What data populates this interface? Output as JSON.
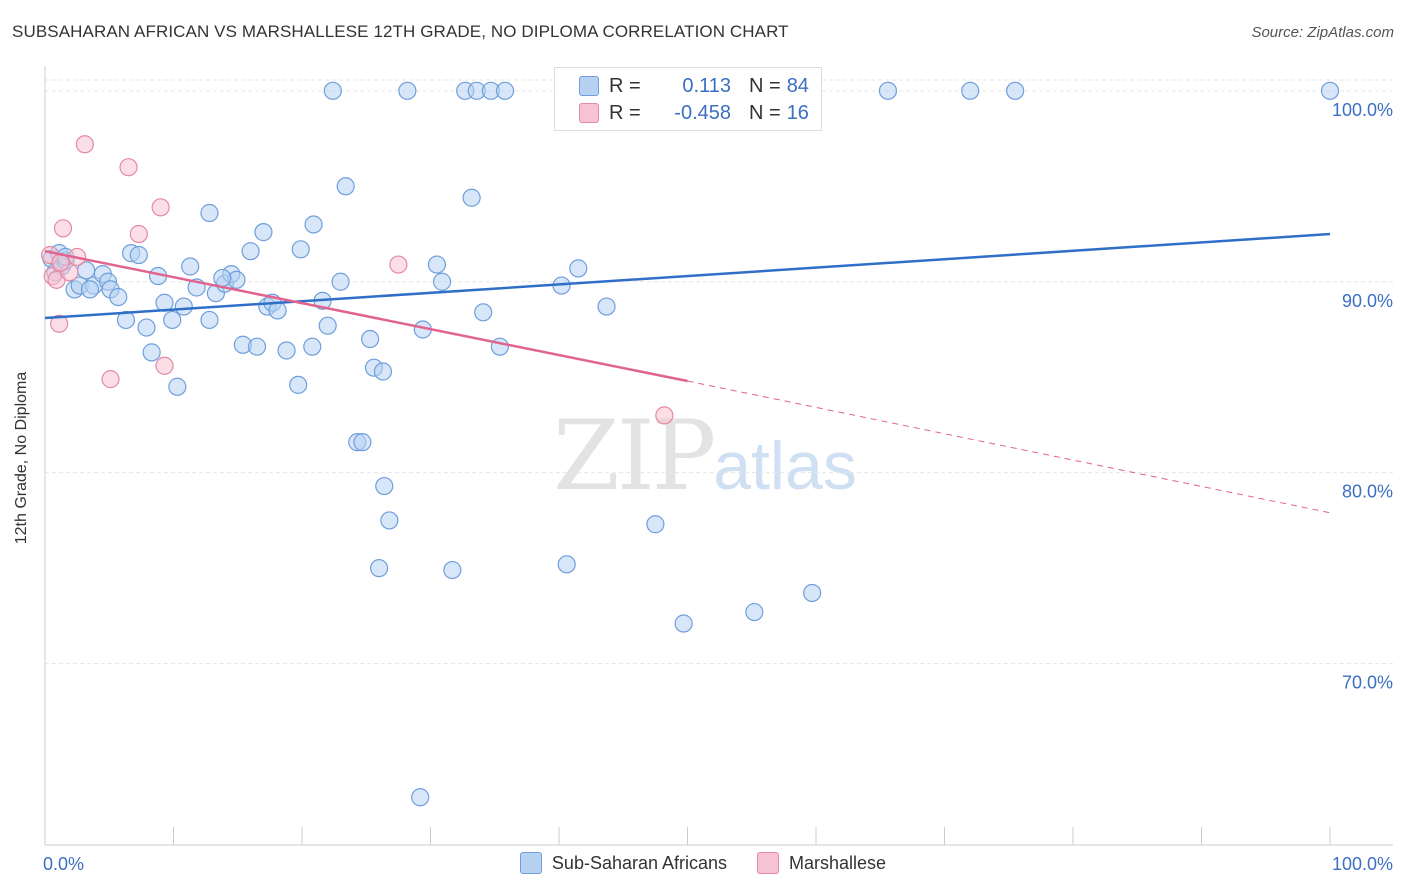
{
  "header": {
    "title": "SUBSAHARAN AFRICAN VS MARSHALLESE 12TH GRADE, NO DIPLOMA CORRELATION CHART",
    "source": "Source: ZipAtlas.com"
  },
  "legend": {
    "rows": [
      {
        "r_label": "R =",
        "r_value": "0.113",
        "n_label": "N =",
        "n_value": "84"
      },
      {
        "r_label": "R =",
        "r_value": "-0.458",
        "n_label": "N =",
        "n_value": "16"
      }
    ],
    "bottom": [
      "Sub-Saharan Africans",
      "Marshallese"
    ]
  },
  "watermark": {
    "zip": "ZIP",
    "atlas": "atlas"
  },
  "colors": {
    "blue_fill": "#b7d1f2",
    "blue_stroke": "#6f9fdb",
    "blue_line": "#2f6fc8",
    "pink_fill": "#f7c3d2",
    "pink_stroke": "#e48aa6",
    "pink_line": "#e0648f",
    "grid": "#e6e6e6",
    "tick_text": "#3b6fc4"
  },
  "chart_data": {
    "type": "scatter",
    "title": "SUBSAHARAN AFRICAN VS MARSHALLESE 12TH GRADE, NO DIPLOMA CORRELATION CHART",
    "xlabel": "",
    "ylabel": "12th Grade, No Diploma",
    "xlim": [
      0,
      100
    ],
    "ylim": [
      60.5,
      101.3
    ],
    "x_tick_labels": [
      "0.0%",
      "100.0%"
    ],
    "y_ticks": [
      70,
      80,
      90,
      100
    ],
    "y_tick_labels": [
      "70.0%",
      "80.0%",
      "90.0%",
      "100.0%"
    ],
    "grid": true,
    "series": [
      {
        "name": "Sub-Saharan Africans",
        "points": [
          [
            0.5,
            91.2
          ],
          [
            0.8,
            90.5
          ],
          [
            1.1,
            91.5
          ],
          [
            1.3,
            90.8
          ],
          [
            1.6,
            91.1
          ],
          [
            2.3,
            89.6
          ],
          [
            2.7,
            89.8
          ],
          [
            3.2,
            90.6
          ],
          [
            3.8,
            89.8
          ],
          [
            4.5,
            90.4
          ],
          [
            4.9,
            90.0
          ],
          [
            5.1,
            89.6
          ],
          [
            5.7,
            89.2
          ],
          [
            6.3,
            88.0
          ],
          [
            6.7,
            91.5
          ],
          [
            7.3,
            91.4
          ],
          [
            7.9,
            87.6
          ],
          [
            8.3,
            86.3
          ],
          [
            8.8,
            90.3
          ],
          [
            9.3,
            88.9
          ],
          [
            9.9,
            88.0
          ],
          [
            10.3,
            84.5
          ],
          [
            10.8,
            88.7
          ],
          [
            11.3,
            90.8
          ],
          [
            11.8,
            89.7
          ],
          [
            12.8,
            88.0
          ],
          [
            12.8,
            93.6
          ],
          [
            13.3,
            89.4
          ],
          [
            14.0,
            89.9
          ],
          [
            14.5,
            90.4
          ],
          [
            14.9,
            90.1
          ],
          [
            15.4,
            86.7
          ],
          [
            16.0,
            91.6
          ],
          [
            16.5,
            86.6
          ],
          [
            17.0,
            92.6
          ],
          [
            17.3,
            88.7
          ],
          [
            17.7,
            88.9
          ],
          [
            18.1,
            88.5
          ],
          [
            18.8,
            86.4
          ],
          [
            19.7,
            84.6
          ],
          [
            19.9,
            91.7
          ],
          [
            20.8,
            86.6
          ],
          [
            20.9,
            93.0
          ],
          [
            21.6,
            89.0
          ],
          [
            22.0,
            87.7
          ],
          [
            22.4,
            100.0
          ],
          [
            23.0,
            90.0
          ],
          [
            23.4,
            95.0
          ],
          [
            24.3,
            81.6
          ],
          [
            24.7,
            81.6
          ],
          [
            25.3,
            87.0
          ],
          [
            25.6,
            85.5
          ],
          [
            26.0,
            75.0
          ],
          [
            26.3,
            85.3
          ],
          [
            26.4,
            79.3
          ],
          [
            26.8,
            77.5
          ],
          [
            28.2,
            100.0
          ],
          [
            29.2,
            63.0
          ],
          [
            29.4,
            87.5
          ],
          [
            30.5,
            90.9
          ],
          [
            30.9,
            90.0
          ],
          [
            31.7,
            74.9
          ],
          [
            32.7,
            100.0
          ],
          [
            33.2,
            94.4
          ],
          [
            33.6,
            100.0
          ],
          [
            34.1,
            88.4
          ],
          [
            34.7,
            100.0
          ],
          [
            35.4,
            86.6
          ],
          [
            35.8,
            100.0
          ],
          [
            40.2,
            89.8
          ],
          [
            40.6,
            75.2
          ],
          [
            41.5,
            90.7
          ],
          [
            43.7,
            88.7
          ],
          [
            47.5,
            77.3
          ],
          [
            49.7,
            72.1
          ],
          [
            55.2,
            72.7
          ],
          [
            59.7,
            73.7
          ],
          [
            65.6,
            100.0
          ],
          [
            72.0,
            100.0
          ],
          [
            75.5,
            100.0
          ],
          [
            100.0,
            100.0
          ],
          [
            1.6,
            91.3
          ],
          [
            3.5,
            89.6
          ],
          [
            13.8,
            90.2
          ]
        ]
      },
      {
        "name": "Marshallese",
        "points": [
          [
            0.4,
            91.4
          ],
          [
            0.6,
            90.3
          ],
          [
            0.9,
            90.1
          ],
          [
            1.1,
            87.8
          ],
          [
            1.4,
            92.8
          ],
          [
            1.9,
            90.5
          ],
          [
            2.5,
            91.3
          ],
          [
            3.1,
            97.2
          ],
          [
            5.1,
            84.9
          ],
          [
            6.5,
            96.0
          ],
          [
            7.3,
            92.5
          ],
          [
            9.0,
            93.9
          ],
          [
            9.3,
            85.6
          ],
          [
            27.5,
            90.9
          ],
          [
            48.2,
            83.0
          ],
          [
            1.2,
            91.0
          ]
        ]
      }
    ],
    "trendlines": [
      {
        "series": "Sub-Saharan Africans",
        "x": [
          0,
          100
        ],
        "y": [
          88.1,
          92.5
        ],
        "style": "solid"
      },
      {
        "series": "Marshallese",
        "x": [
          0,
          50
        ],
        "y": [
          91.6,
          84.8
        ],
        "style": "solid"
      },
      {
        "series": "Marshallese",
        "x": [
          50,
          100
        ],
        "y": [
          84.8,
          77.9
        ],
        "style": "dashed"
      }
    ]
  }
}
